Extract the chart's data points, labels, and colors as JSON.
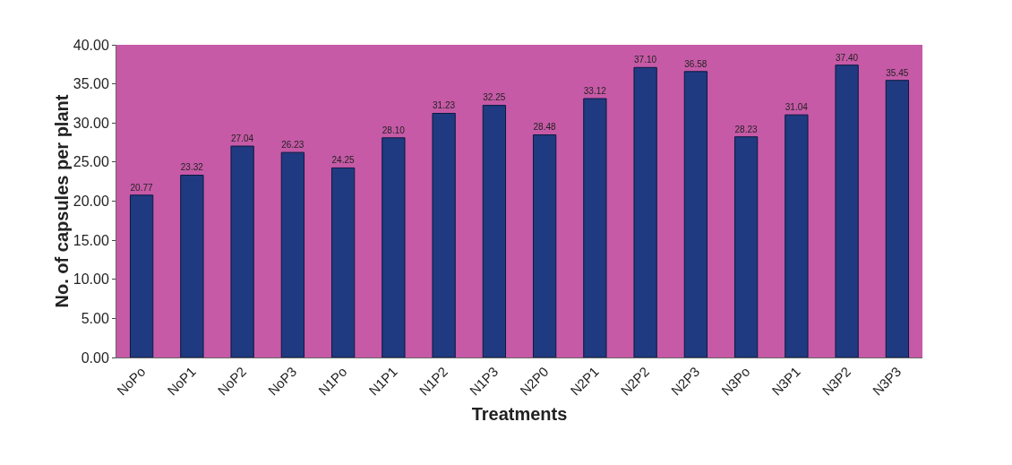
{
  "chart_data": {
    "type": "bar",
    "xlabel": "Treatments",
    "ylabel": "No. of capsules per plant",
    "categories": [
      "NoPo",
      "NoP1",
      "NoP2",
      "NoP3",
      "N1Po",
      "N1P1",
      "N1P2",
      "N1P3",
      "N2P0",
      "N2P1",
      "N2P2",
      "N2P3",
      "N3Po",
      "N3P1",
      "N3P2",
      "N3P3"
    ],
    "values": [
      20.77,
      23.32,
      27.04,
      26.23,
      24.25,
      28.1,
      31.23,
      32.25,
      28.48,
      33.12,
      37.1,
      36.58,
      28.23,
      31.04,
      37.4,
      35.45
    ],
    "value_labels": [
      "20.77",
      "23.32",
      "27.04",
      "26.23",
      "24.25",
      "28.10",
      "31.23",
      "32.25",
      "28.48",
      "33.12",
      "37.10",
      "36.58",
      "28.23",
      "31.04",
      "37.40",
      "35.45"
    ],
    "color": "#1f3a80",
    "ylim": [
      0,
      40
    ],
    "yticks": [
      {
        "value": 0,
        "label": "0.00"
      },
      {
        "value": 5,
        "label": "5.00"
      },
      {
        "value": 10,
        "label": "10.00"
      },
      {
        "value": 15,
        "label": "15.00"
      },
      {
        "value": 20,
        "label": "20.00"
      },
      {
        "value": 25,
        "label": "25.00"
      },
      {
        "value": 30,
        "label": "30.00"
      },
      {
        "value": 35,
        "label": "35.00"
      },
      {
        "value": 40,
        "label": "40.00"
      }
    ],
    "grid": false
  }
}
